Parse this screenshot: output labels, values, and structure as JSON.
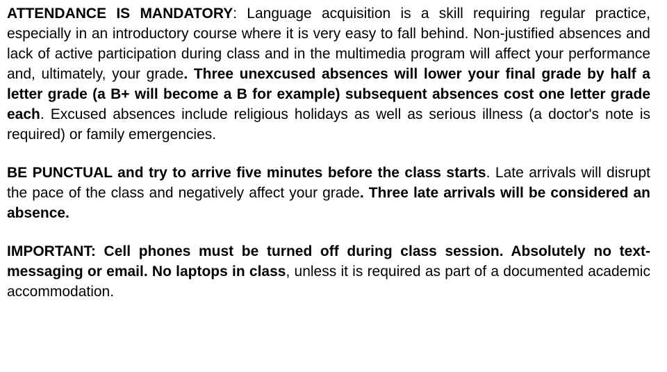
{
  "font_family": "Comic Sans MS",
  "text_color": "#000000",
  "background_color": "#ffffff",
  "font_size_pt": 16,
  "line_height": 1.38,
  "text_align": "justify",
  "paragraphs": {
    "p1": {
      "s1_bold": "ATTENDANCE IS MANDATORY",
      "s1_rest_a": ": Language acquisition is a skill requiring regular practice, especially in an introductory course where it is very easy to fall behind",
      "s2": ". Non-justified absences and lack of active participation during class and in the multimedia program will affect your performance and, ultimately, your grade",
      "s3_bold": ". Three unexcused absences will lower your final grade by half a letter grade (a B+ will become a B for example) subsequent absences cost one letter grade each",
      "s4": ". Excused absences include religious holidays as well as serious illness (a doctor's note is required) or family emergencies."
    },
    "p2": {
      "s1_bold": "BE PUNCTUAL and try to arrive five minutes before the class starts",
      "s1_rest": ". Late arrivals will disrupt the pace of the class and negatively affect your grade",
      "s2_bold": ". Three late arrivals will be considered an absence."
    },
    "p3": {
      "s1_bold": "IMPORTANT: Cell phones must be turned off during class session",
      "s1_rest_bold": ". Absolutely no text-messaging or email",
      "s2_bold_a": ". No laptops in class",
      "s2_rest": ", unless it is required as part of a documented academic accommodation."
    }
  }
}
